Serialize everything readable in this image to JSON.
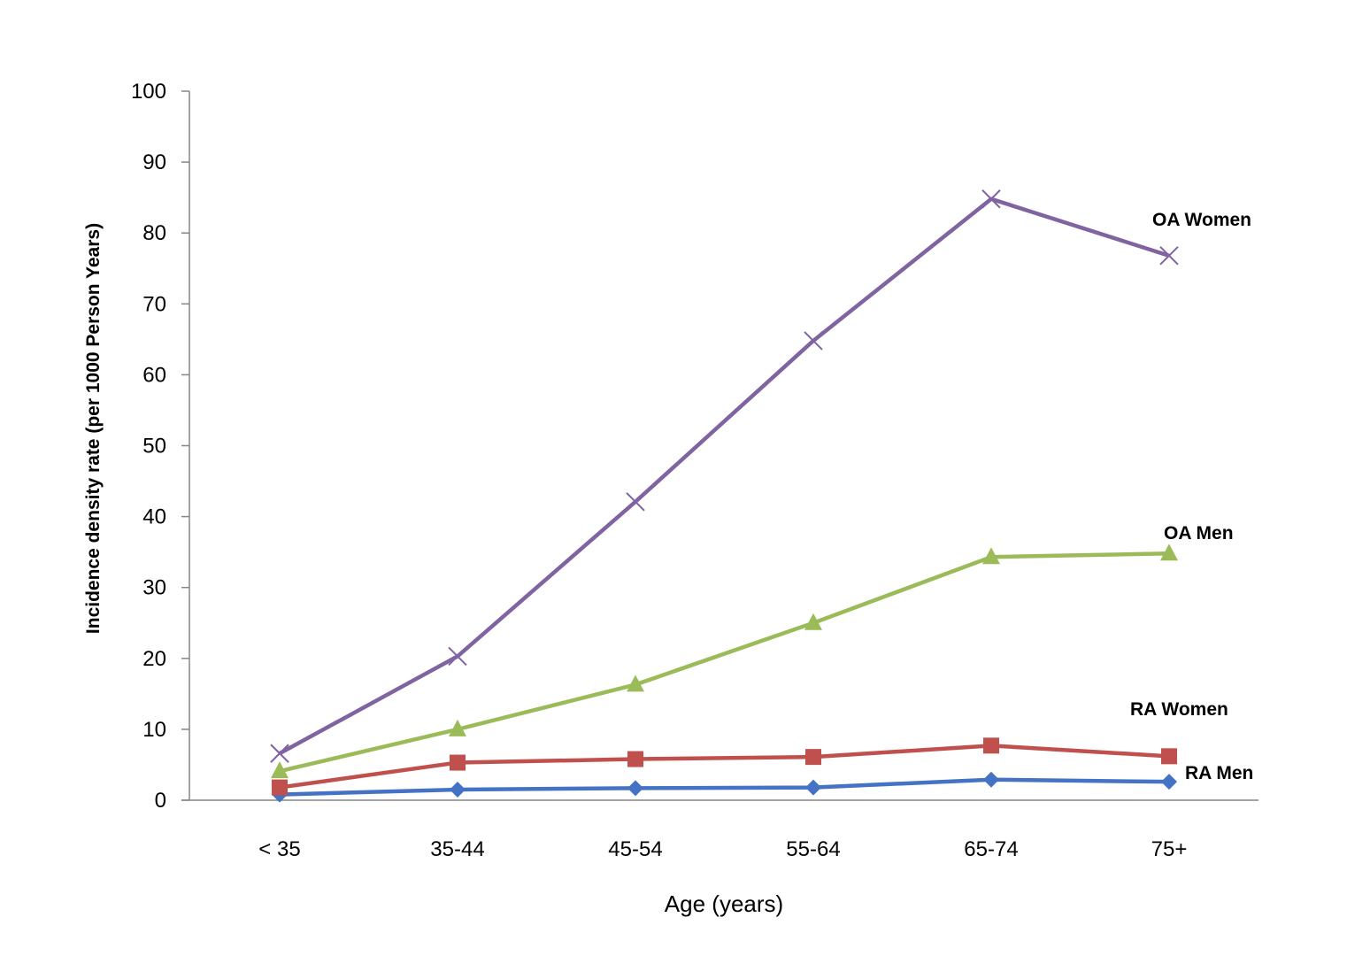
{
  "chart_data": {
    "type": "line",
    "title": "",
    "xlabel": "Age (years)",
    "ylabel": "Incidence density rate (per 1000 Person  Years)",
    "categories": [
      "< 35",
      "35-44",
      "45-54",
      "55-64",
      "65-74",
      "75+"
    ],
    "ylim": [
      0,
      100
    ],
    "yticks": [
      0,
      10,
      20,
      30,
      40,
      50,
      60,
      70,
      80,
      90,
      100
    ],
    "grid": false,
    "legend": "inline labels at right end of lines",
    "series": [
      {
        "name": "RA Men",
        "color": "#4472C4",
        "marker": "diamond",
        "values": [
          0.8,
          1.5,
          1.7,
          1.8,
          2.9,
          2.6
        ]
      },
      {
        "name": "RA Women",
        "color": "#C0504D",
        "marker": "square",
        "values": [
          1.8,
          5.3,
          5.8,
          6.1,
          7.7,
          6.2
        ]
      },
      {
        "name": "OA Men",
        "color": "#9BBB59",
        "marker": "triangle",
        "values": [
          4.1,
          10.0,
          16.3,
          25.0,
          34.3,
          34.8
        ]
      },
      {
        "name": "OA Women",
        "color": "#8064A2",
        "marker": "x",
        "values": [
          6.6,
          20.3,
          42.1,
          64.8,
          84.8,
          76.8
        ]
      }
    ]
  }
}
